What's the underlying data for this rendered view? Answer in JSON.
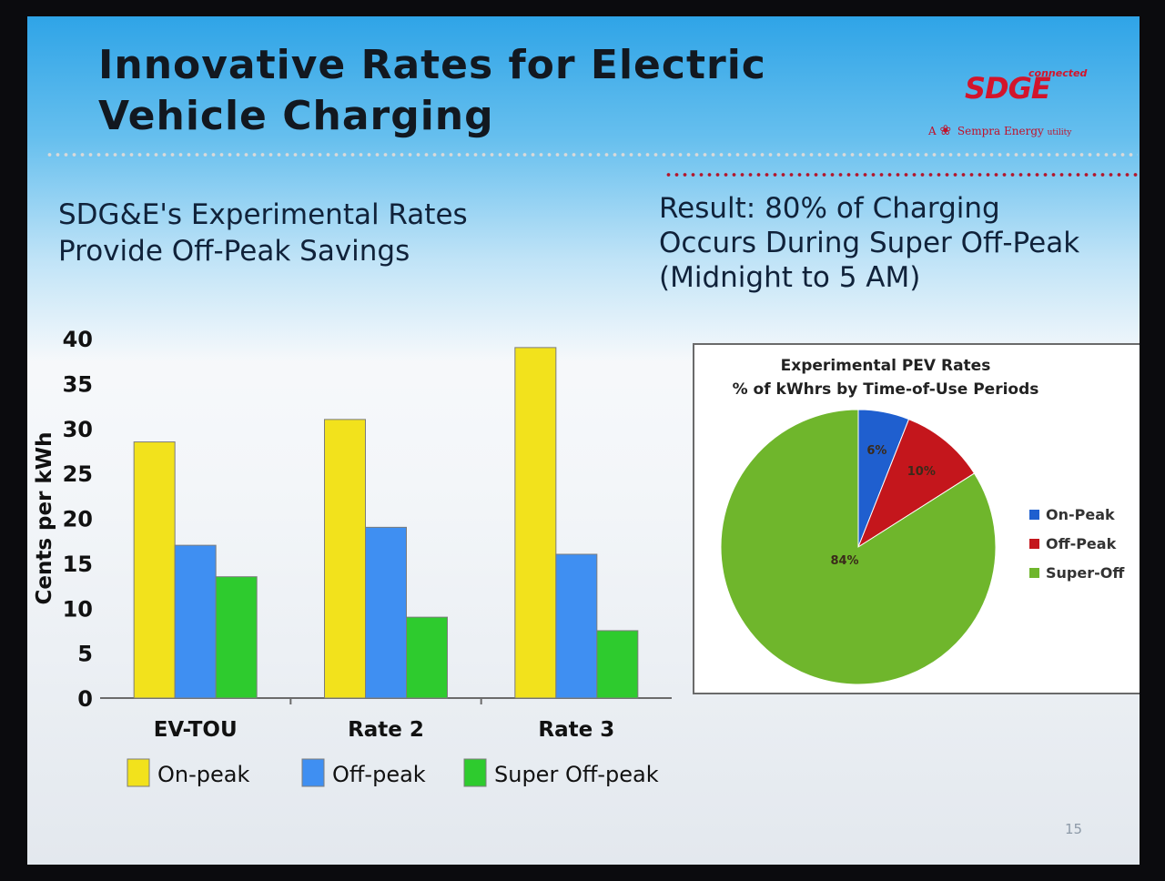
{
  "slide": {
    "title_line1": "Innovative Rates for Electric",
    "title_line2": "Vehicle Charging",
    "subtitle_left_line1": "SDG&E's Experimental Rates",
    "subtitle_left_line2": "Provide Off-Peak Savings",
    "subtitle_right_line1": "Result: 80% of Charging",
    "subtitle_right_line2": "Occurs During Super Off-Peak",
    "subtitle_right_line3": "(Midnight to 5 AM)",
    "page_number": "15"
  },
  "logo": {
    "mark": "SDGE",
    "tag": "connected",
    "parent_prefix": "A",
    "parent_name": "Sempra Energy",
    "parent_suffix": "utility"
  },
  "colors": {
    "on_peak_bar": "#f2e21c",
    "off_peak_bar": "#3f8ff2",
    "super_off_peak_bar": "#2ecb2e",
    "pie_on_peak": "#1f5fcf",
    "pie_off_peak": "#c4161c",
    "pie_super_off": "#6fb62c"
  },
  "chart_data": [
    {
      "type": "bar",
      "title": "",
      "xlabel": "",
      "ylabel": "Cents per kWh",
      "ylim": [
        0,
        40
      ],
      "yticks": [
        0,
        5,
        10,
        15,
        20,
        25,
        30,
        35,
        40
      ],
      "categories": [
        "EV-TOU",
        "Rate 2",
        "Rate 3"
      ],
      "series": [
        {
          "name": "On-peak",
          "values": [
            28.5,
            31,
            39
          ]
        },
        {
          "name": "Off-peak",
          "values": [
            17,
            19,
            16
          ]
        },
        {
          "name": "Super Off-peak",
          "values": [
            13.5,
            9,
            7.5
          ]
        }
      ],
      "legend": "bottom"
    },
    {
      "type": "pie",
      "title_line1": "Experimental PEV Rates",
      "title_line2": "% of kWhrs by Time-of-Use Periods",
      "labels": [
        "On-Peak",
        "Off-Peak",
        "Super-Off"
      ],
      "values": [
        6,
        10,
        84
      ],
      "data_labels": [
        "6%",
        "10%",
        "84%"
      ],
      "legend": "right"
    }
  ]
}
